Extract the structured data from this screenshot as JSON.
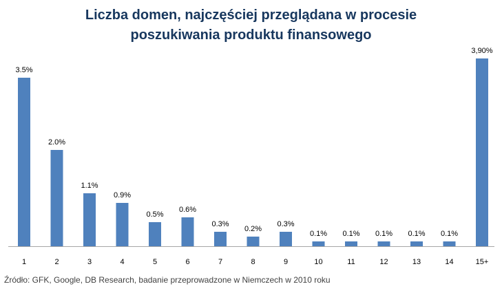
{
  "chart_data": {
    "type": "bar",
    "title_lines": [
      "Liczba domen, najczęściej przeglądana w procesie",
      "poszukiwania produktu finansowego"
    ],
    "xlabel": "",
    "ylabel": "",
    "categories": [
      "1",
      "2",
      "3",
      "4",
      "5",
      "6",
      "7",
      "8",
      "9",
      "10",
      "11",
      "12",
      "13",
      "14",
      "15+"
    ],
    "values": [
      3.5,
      2.0,
      1.1,
      0.9,
      0.5,
      0.6,
      0.3,
      0.2,
      0.3,
      0.1,
      0.1,
      0.1,
      0.1,
      0.1,
      3.9
    ],
    "data_labels": [
      "3.5%",
      "2.0%",
      "1.1%",
      "0.9%",
      "0.5%",
      "0.6%",
      "0.3%",
      "0.2%",
      "0.3%",
      "0.1%",
      "0.1%",
      "0.1%",
      "0.1%",
      "0.1%",
      "3,90%"
    ],
    "grid": false,
    "legend": "none",
    "bar_color": "#4f81bd"
  },
  "source_note": "Źródło: GFK, Google, DB Research, badanie przeprowadzone w Niemczech w 2010 roku"
}
